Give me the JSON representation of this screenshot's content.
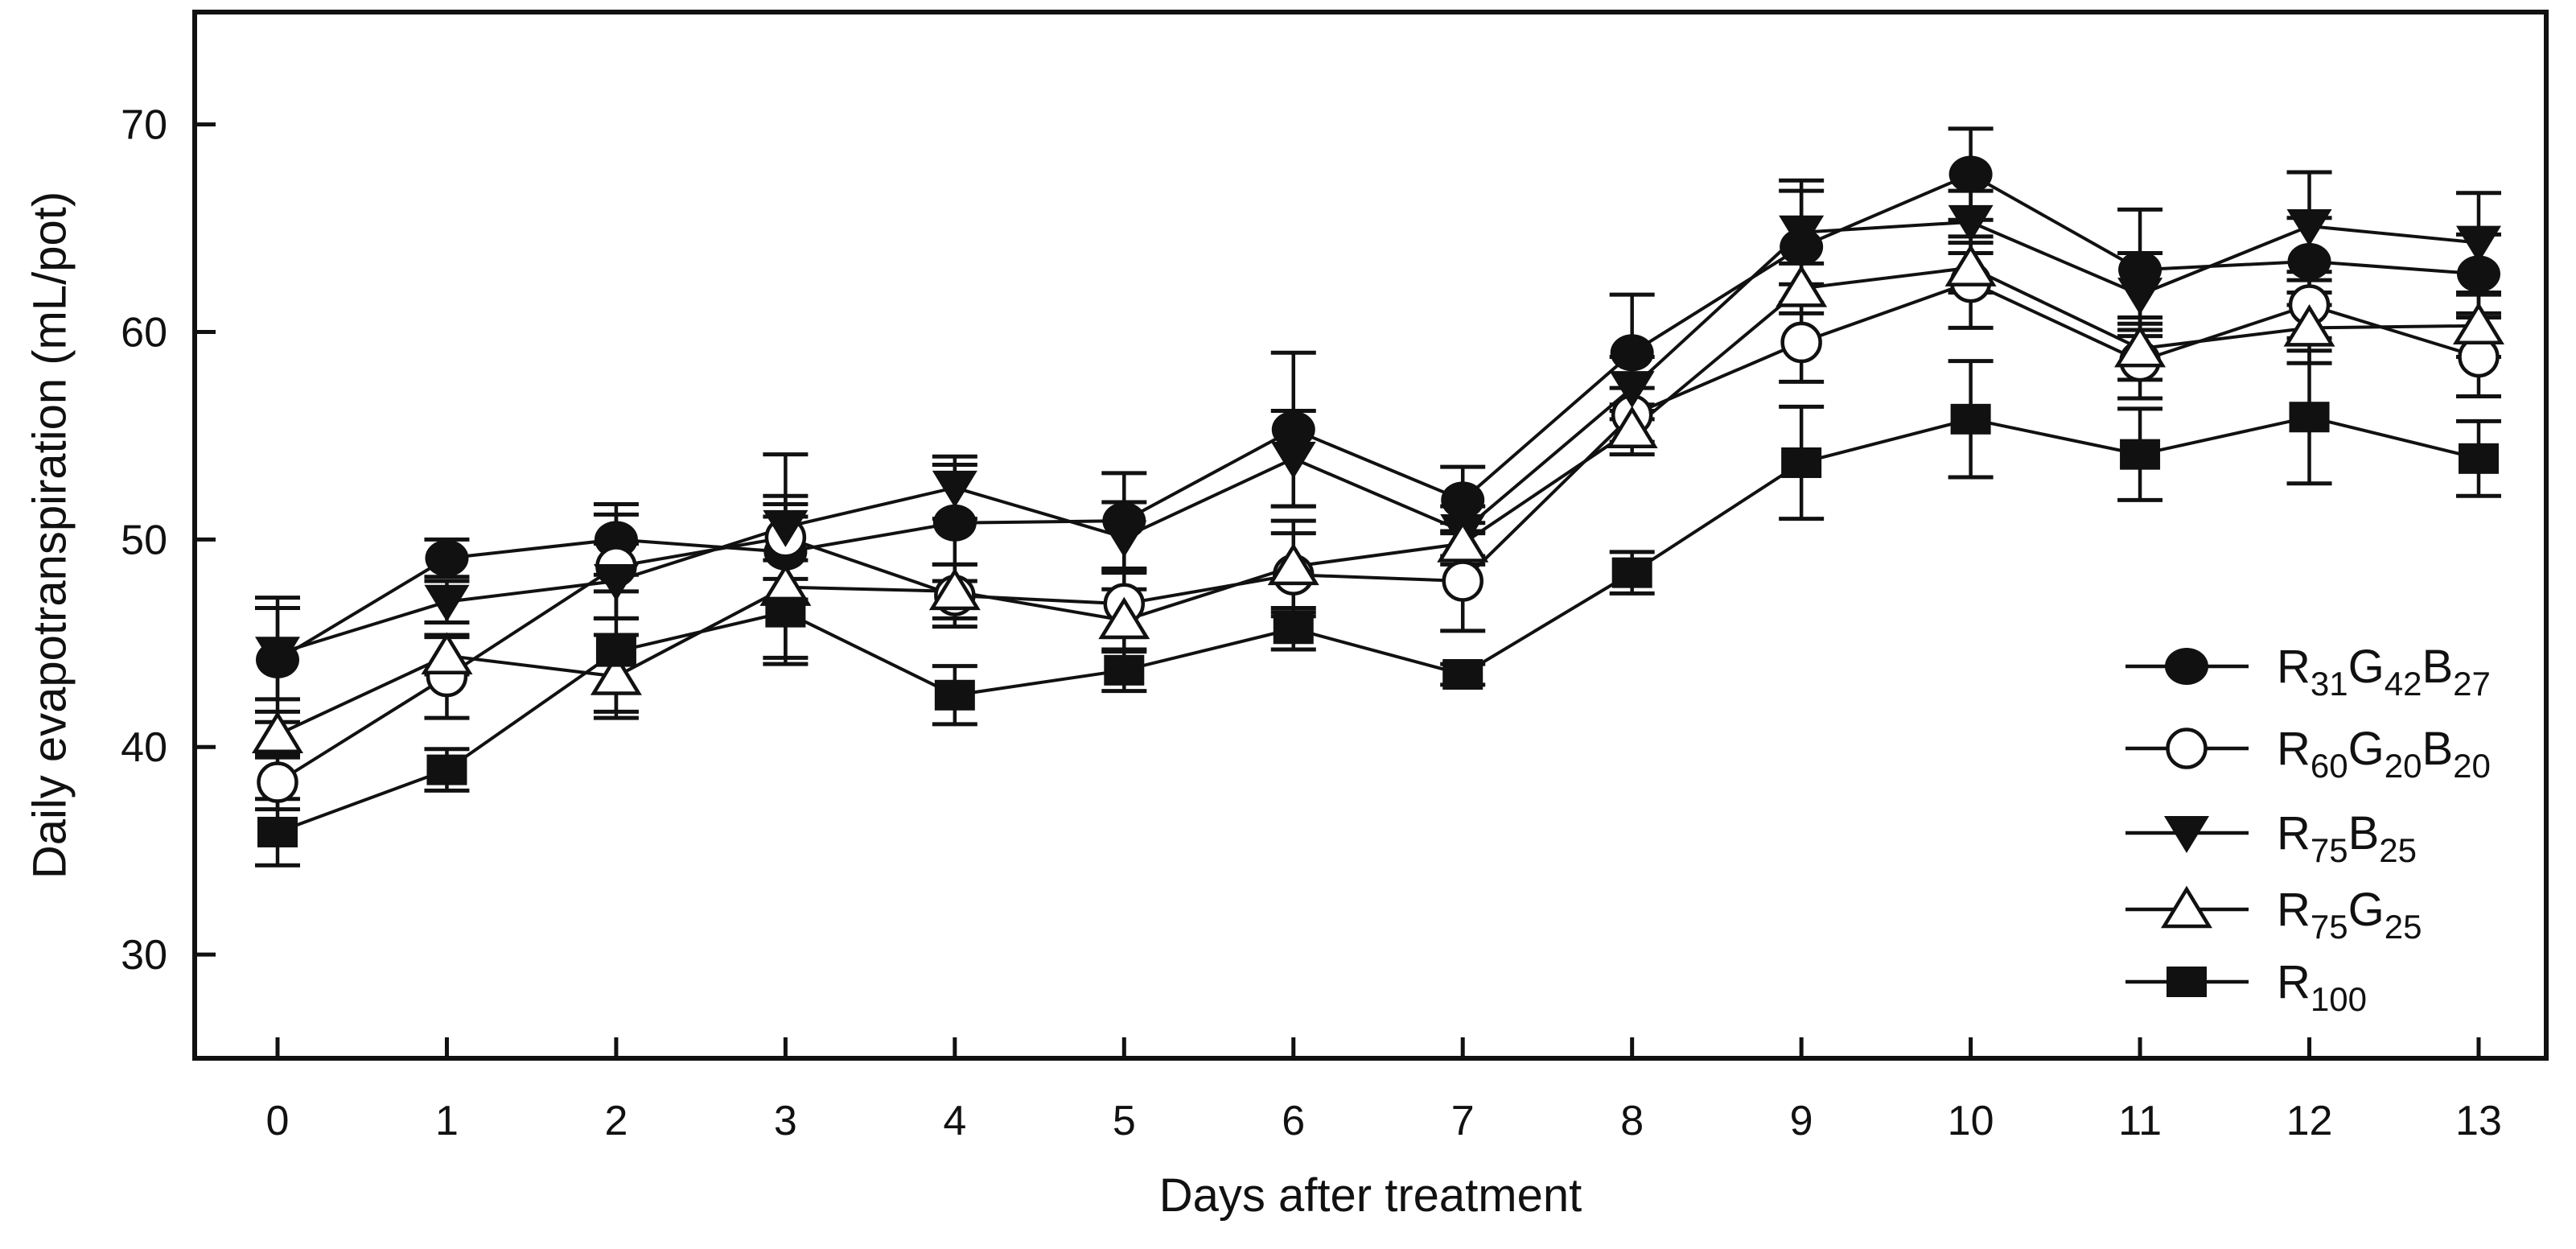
{
  "chart_data": {
    "type": "line",
    "title": "",
    "xlabel": "Days after treatment",
    "ylabel": "Daily evapotranspiration (mL/pot)",
    "x": [
      0,
      1,
      2,
      3,
      4,
      5,
      6,
      7,
      8,
      9,
      10,
      11,
      12,
      13
    ],
    "xticks": [
      0,
      1,
      2,
      3,
      4,
      5,
      6,
      7,
      8,
      9,
      10,
      11,
      12,
      13
    ],
    "yticks": [
      30,
      40,
      50,
      60,
      70
    ],
    "xlim": [
      -0.5,
      13.4
    ],
    "ylim": [
      25,
      75.4
    ],
    "grid": false,
    "legend_position": "inside-right",
    "line_color": "#111111",
    "background": "#ffffff",
    "error_bars": true,
    "series": [
      {
        "name": "R31G42B27",
        "label_parts": [
          [
            "R",
            "31"
          ],
          [
            "G",
            "42"
          ],
          [
            "B",
            "27"
          ]
        ],
        "marker": "circle-filled",
        "values": [
          44.2,
          49.1,
          50.0,
          49.4,
          50.8,
          50.9,
          55.3,
          51.9,
          59.0,
          64.1,
          67.6,
          63.0,
          63.4,
          62.8
        ],
        "errors": [
          3.0,
          0.9,
          1.7,
          2.3,
          2.8,
          2.3,
          3.7,
          1.6,
          2.8,
          2.7,
          2.2,
          2.9,
          2.1,
          1.9
        ]
      },
      {
        "name": "R60G20B20",
        "label_parts": [
          [
            "R",
            "60"
          ],
          [
            "G",
            "20"
          ],
          [
            "B",
            "20"
          ]
        ],
        "marker": "circle-open",
        "values": [
          38.3,
          43.4,
          48.7,
          50.1,
          47.3,
          46.9,
          48.3,
          48.0,
          56.0,
          59.5,
          62.4,
          58.6,
          61.3,
          58.8
        ],
        "errors": [
          1.3,
          2.0,
          2.5,
          2.0,
          1.5,
          1.6,
          2.0,
          2.4,
          1.3,
          1.9,
          2.2,
          1.8,
          1.6,
          1.9
        ]
      },
      {
        "name": "R75B25",
        "label_parts": [
          [
            "R",
            "75"
          ],
          [
            "B",
            "25"
          ]
        ],
        "marker": "triangle-down-filled",
        "values": [
          44.5,
          47.0,
          48.0,
          50.6,
          52.5,
          50.1,
          53.9,
          50.4,
          57.3,
          64.8,
          65.3,
          61.8,
          65.1,
          64.3
        ],
        "errors": [
          2.2,
          1.0,
          1.8,
          3.5,
          1.5,
          1.7,
          2.3,
          1.2,
          1.5,
          2.5,
          1.5,
          2.0,
          2.6,
          2.4
        ]
      },
      {
        "name": "R75G25",
        "label_parts": [
          [
            "R",
            "75"
          ],
          [
            "G",
            "25"
          ]
        ],
        "marker": "triangle-up-open",
        "values": [
          40.6,
          44.4,
          43.4,
          47.7,
          47.5,
          46.1,
          48.7,
          49.8,
          55.3,
          62.1,
          63.1,
          59.2,
          60.2,
          60.3
        ],
        "errors": [
          1.1,
          0.9,
          2.0,
          3.4,
          1.3,
          1.5,
          2.2,
          1.0,
          1.2,
          1.2,
          1.2,
          1.5,
          1.7,
          1.5
        ]
      },
      {
        "name": "R100",
        "label_parts": [
          [
            "R",
            "100"
          ]
        ],
        "marker": "square-filled",
        "values": [
          35.9,
          38.9,
          44.6,
          46.5,
          42.5,
          43.7,
          45.7,
          43.5,
          48.4,
          53.7,
          55.8,
          54.1,
          55.9,
          53.9
        ],
        "errors": [
          1.6,
          1.0,
          2.9,
          2.5,
          1.4,
          1.0,
          1.0,
          0.5,
          1.0,
          2.7,
          2.8,
          2.2,
          3.2,
          1.8
        ]
      }
    ]
  }
}
